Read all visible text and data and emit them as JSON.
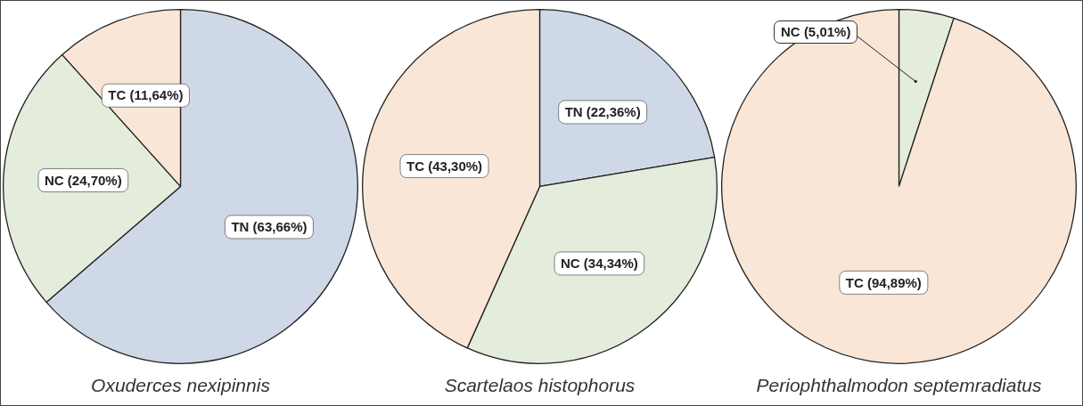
{
  "chart_data": [
    {
      "type": "pie",
      "title": "Oxuderces nexipinnis",
      "categories": [
        "TN",
        "NC",
        "TC"
      ],
      "values": [
        63.66,
        24.7,
        11.64
      ],
      "colors": [
        "#cfd8e6",
        "#e4ecdc",
        "#f9e6d6"
      ],
      "value_labels": [
        "(63,66%)",
        "(24,70%)",
        "(11,64%)"
      ],
      "legend": false
    },
    {
      "type": "pie",
      "title": "Scartelaos histophorus",
      "categories": [
        "TN",
        "NC",
        "TC"
      ],
      "values": [
        22.36,
        34.34,
        43.3
      ],
      "colors": [
        "#cfd8e6",
        "#e4ecdc",
        "#f9e6d6"
      ],
      "value_labels": [
        "(22,36%)",
        "(34,34%)",
        "(43,30%)"
      ],
      "legend": false
    },
    {
      "type": "pie",
      "title": "Periophthalmodon septemradiatus",
      "categories": [
        "NC",
        "TC"
      ],
      "values": [
        5.01,
        94.89
      ],
      "colors": [
        "#e4ecdc",
        "#f9e6d6"
      ],
      "value_labels": [
        "(5,01%)",
        "(94,89%)"
      ],
      "legend": false
    }
  ]
}
